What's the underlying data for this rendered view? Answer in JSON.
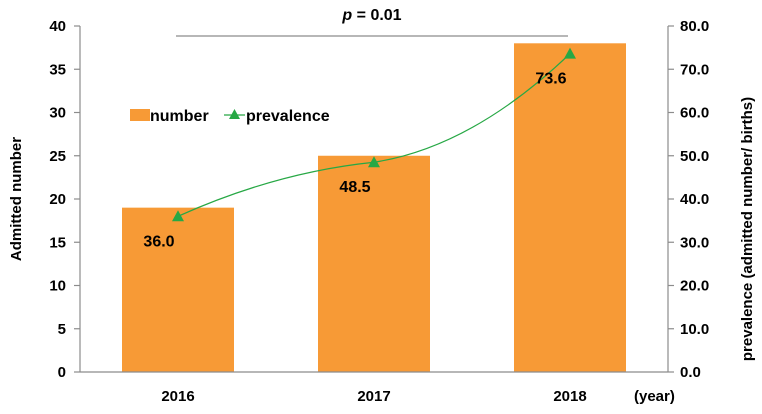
{
  "chart_data": {
    "type": "bar",
    "categories": [
      "2016",
      "2017",
      "2018"
    ],
    "x_unit_label": "(year)",
    "series": [
      {
        "name": "number",
        "type": "bar",
        "axis": "left",
        "values": [
          19,
          25,
          38
        ],
        "color": "#F79A36"
      },
      {
        "name": "prevalence",
        "type": "line",
        "axis": "right",
        "values": [
          36.0,
          48.5,
          73.6
        ],
        "labels": [
          "36.0",
          "48.5",
          "73.6"
        ],
        "color": "#27A845",
        "marker": "triangle"
      }
    ],
    "ylabel": "Admitted number",
    "ylim": [
      0,
      40
    ],
    "yticks": [
      "0",
      "5",
      "10",
      "15",
      "20",
      "25",
      "30",
      "35",
      "40"
    ],
    "y2label": "prevalence (admitted number/ births)",
    "y2lim": [
      0,
      80
    ],
    "y2ticks": [
      "0.0",
      "10.0",
      "20.0",
      "30.0",
      "40.0",
      "50.0",
      "60.0",
      "70.0",
      "80.0"
    ],
    "significance": {
      "p_symbol": "p",
      "eq": " = 0.01",
      "from": "2016",
      "to": "2018"
    },
    "legend": {
      "position": "upper-left",
      "items": [
        "number",
        "prevalence"
      ]
    },
    "grid": false
  }
}
